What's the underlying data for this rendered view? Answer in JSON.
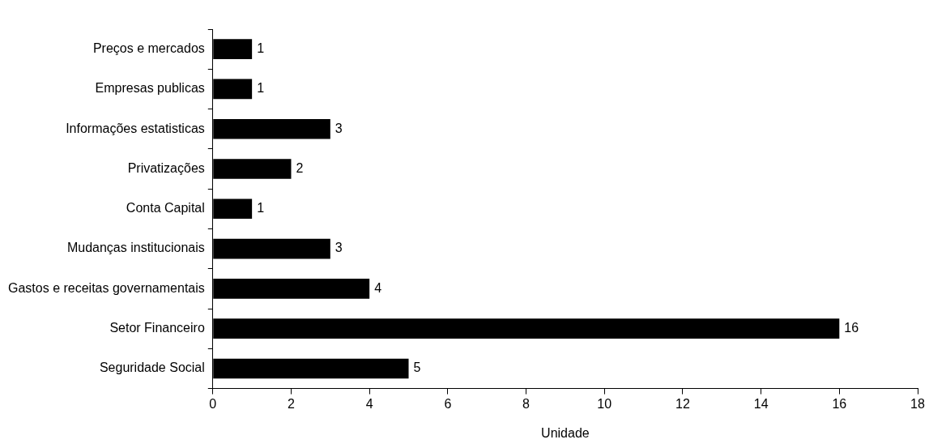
{
  "chart_data": {
    "type": "bar",
    "orientation": "horizontal",
    "xlabel": "Unidade",
    "categories": [
      "Preços e mercados",
      "Empresas publicas",
      "Informações estatisticas",
      "Privatizações",
      "Conta Capital",
      "Mudanças institucionais",
      "Gastos e receitas governamentais",
      "Setor Financeiro",
      "Seguridade Social"
    ],
    "values": [
      1,
      1,
      3,
      2,
      1,
      3,
      4,
      16,
      5
    ],
    "color": "#000000",
    "xlim": [
      0,
      18
    ],
    "xticks": [
      0,
      2,
      4,
      6,
      8,
      10,
      12,
      14,
      16,
      18
    ],
    "grid": false,
    "legend": false,
    "data_labels": true
  }
}
